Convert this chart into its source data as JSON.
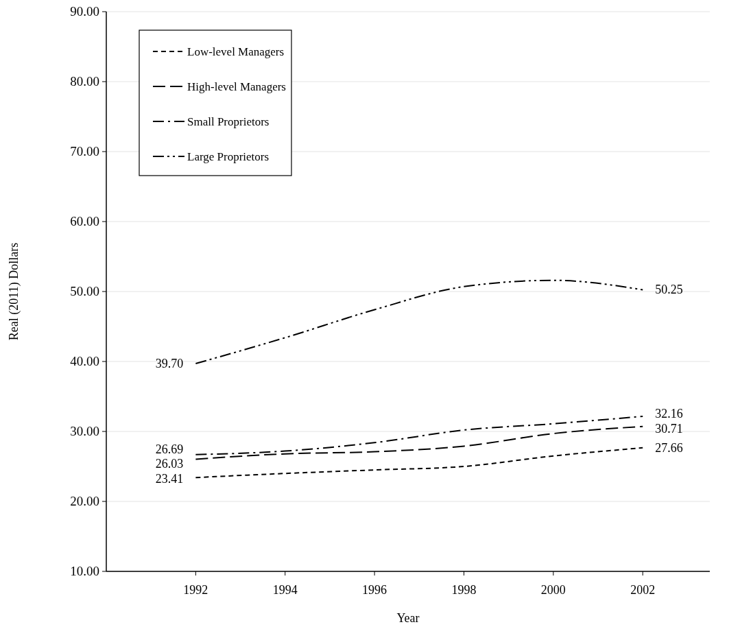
{
  "chart_data": {
    "type": "line",
    "xlabel": "Year",
    "ylabel": "Real (2011) Dollars",
    "x": [
      1992,
      1994,
      1996,
      1998,
      2000,
      2002
    ],
    "xlim": [
      1990,
      2003.5
    ],
    "xticks": [
      1992,
      1994,
      1996,
      1998,
      2000,
      2002
    ],
    "ylim": [
      10,
      90
    ],
    "yticks": [
      {
        "value": 10,
        "label": "10.00"
      },
      {
        "value": 20,
        "label": "20.00"
      },
      {
        "value": 30,
        "label": "30.00"
      },
      {
        "value": 40,
        "label": "40.00"
      },
      {
        "value": 50,
        "label": "50.00"
      },
      {
        "value": 60,
        "label": "60.00"
      },
      {
        "value": 70,
        "label": "70.00"
      },
      {
        "value": 80,
        "label": "80.00"
      },
      {
        "value": 90,
        "label": "90.00"
      }
    ],
    "grid": "y",
    "legend": "top left",
    "marker": "none",
    "series": [
      {
        "name": "Low-level Managers",
        "color": "#000000",
        "line_style": "dashed",
        "values": [
          23.41,
          24.0,
          24.5,
          25.0,
          26.5,
          27.66
        ],
        "value_labels": [
          "23.41",
          null,
          null,
          null,
          null,
          "27.66"
        ]
      },
      {
        "name": "High-level Managers",
        "color": "#000000",
        "line_style": "longdash",
        "values": [
          26.03,
          26.8,
          27.1,
          27.9,
          29.7,
          30.71
        ],
        "value_labels": [
          "26.03",
          null,
          null,
          null,
          null,
          "30.71"
        ]
      },
      {
        "name": "Small Proprietors",
        "color": "#000000",
        "line_style": "dashdot",
        "values": [
          26.69,
          27.2,
          28.4,
          30.2,
          31.1,
          32.16
        ],
        "value_labels": [
          "26.69",
          null,
          null,
          null,
          null,
          "32.16"
        ]
      },
      {
        "name": "Large Proprietors",
        "color": "#000000",
        "line_style": "dashdotdot",
        "values": [
          39.7,
          43.4,
          47.4,
          50.7,
          51.6,
          50.25
        ],
        "value_labels": [
          "39.70",
          null,
          null,
          null,
          null,
          "50.25"
        ]
      }
    ]
  }
}
